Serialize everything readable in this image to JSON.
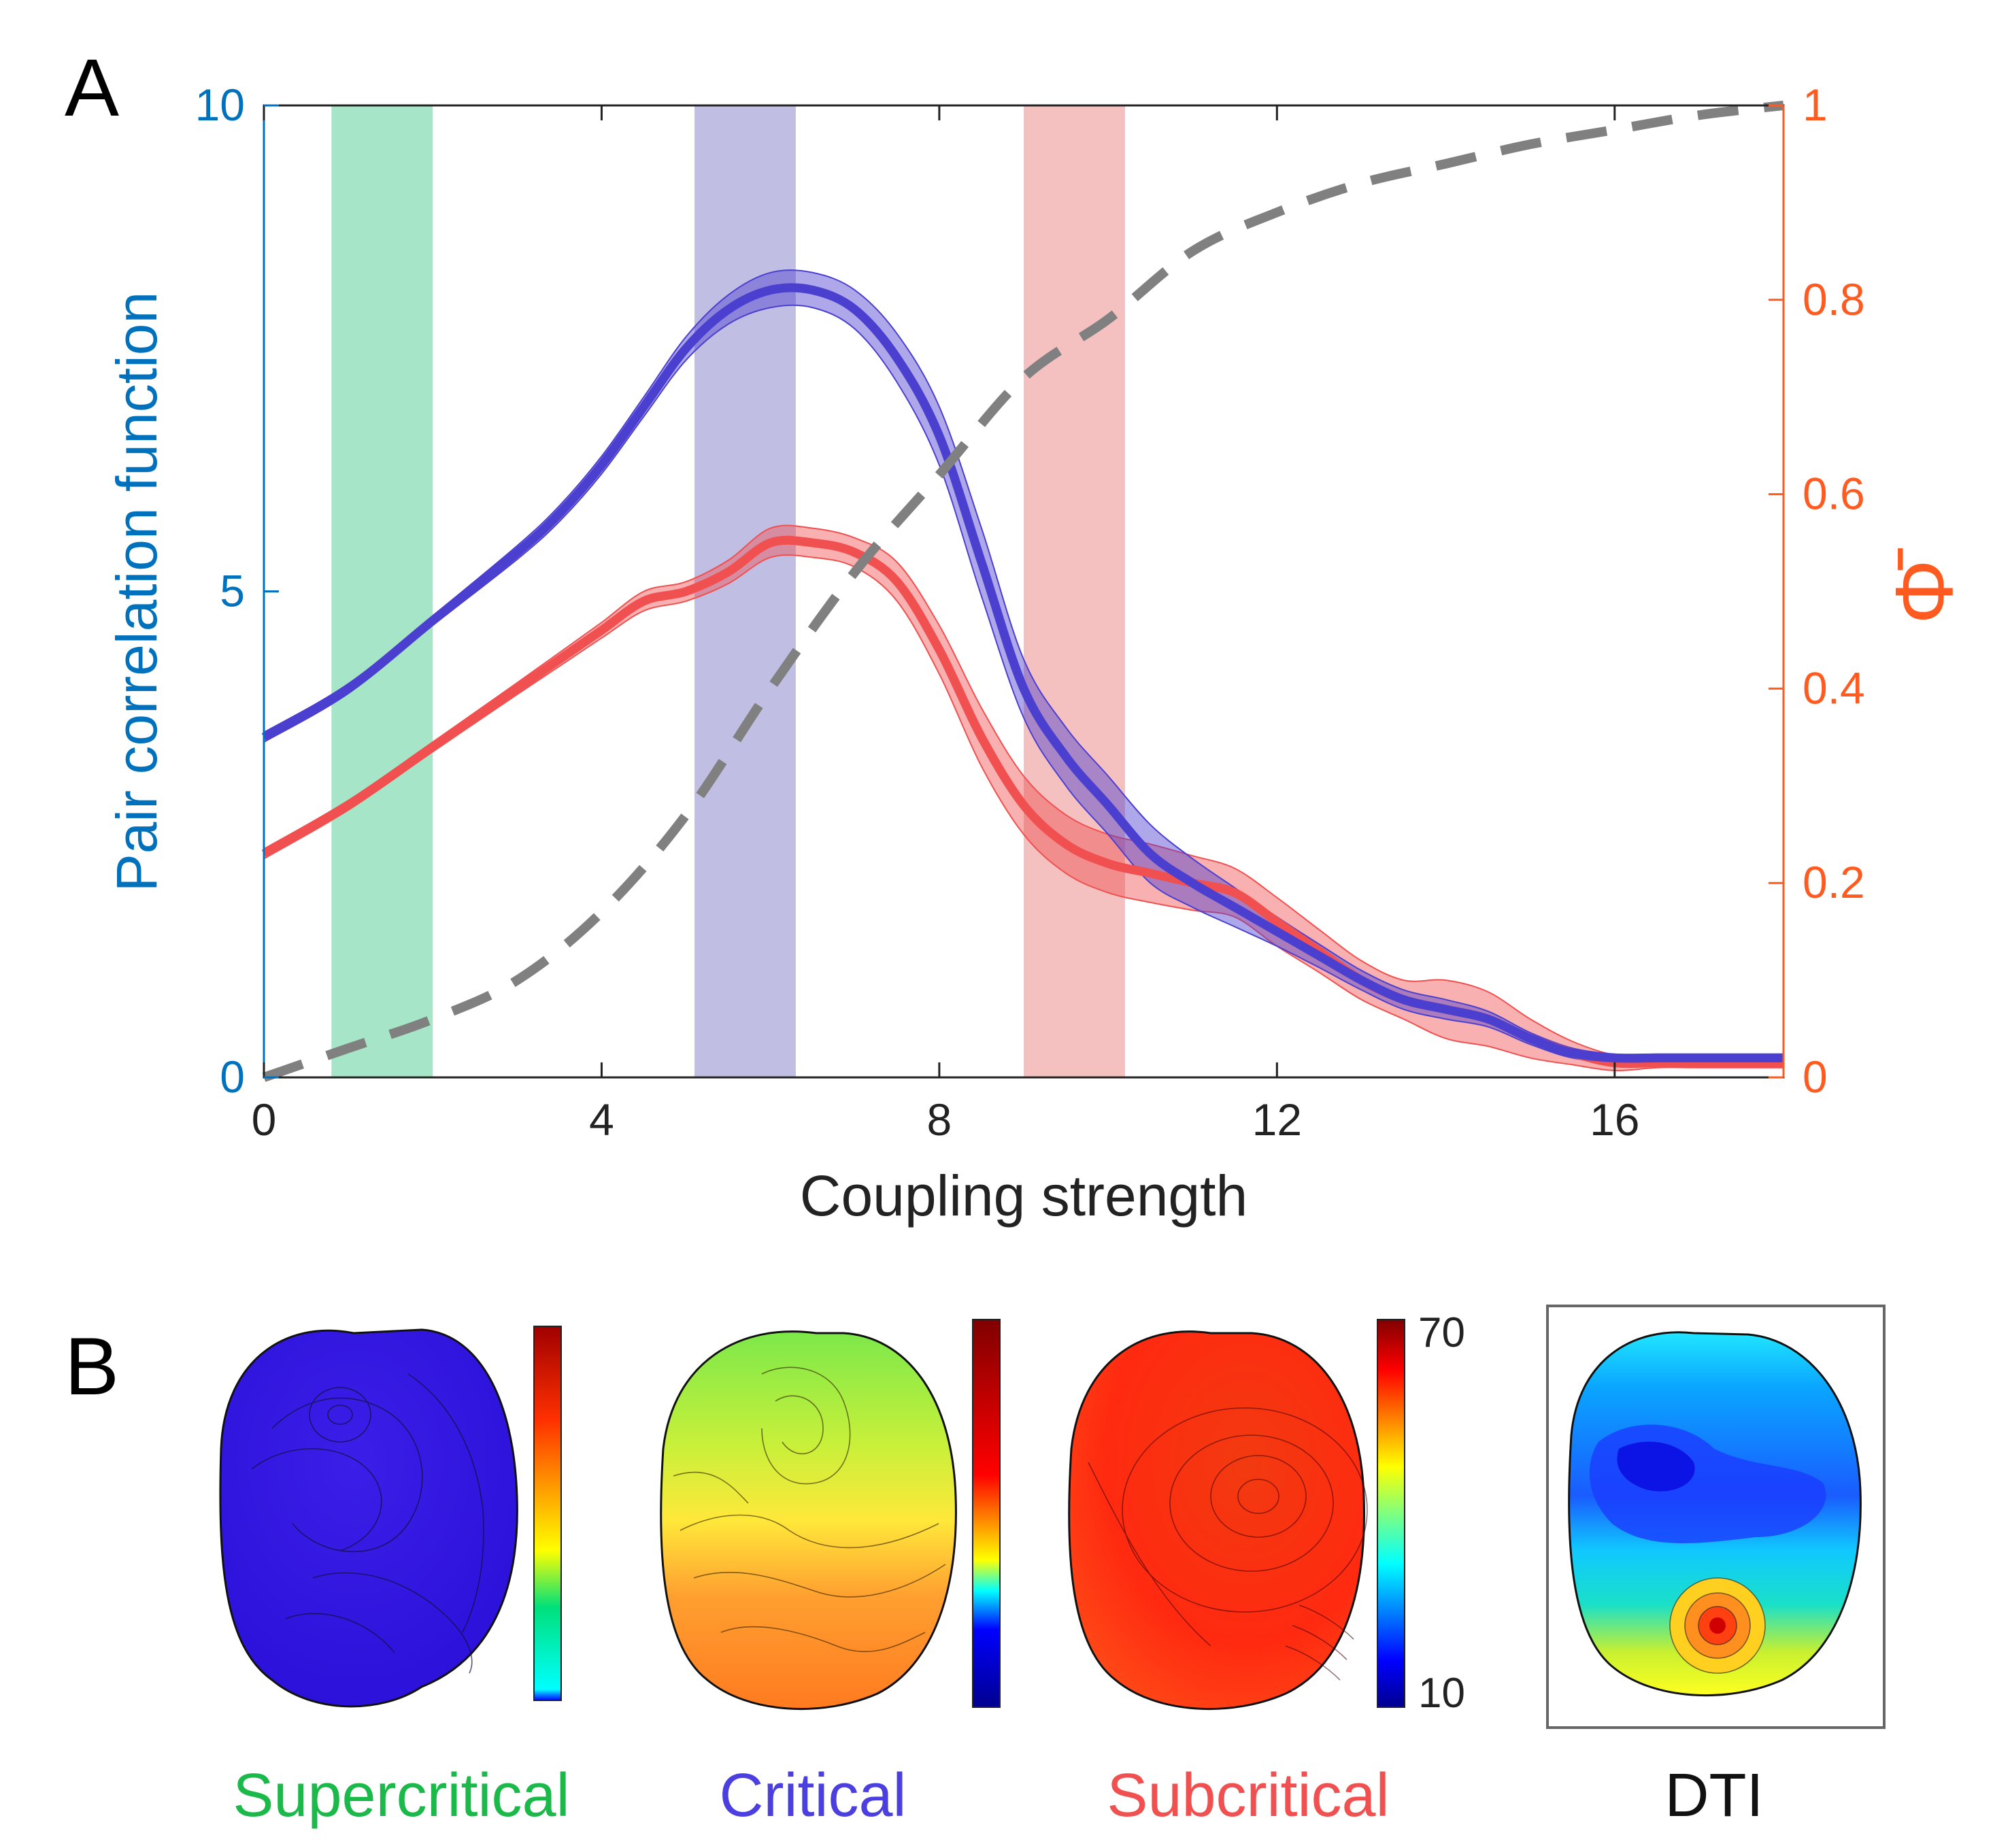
{
  "panel_a_label": "A",
  "panel_b_label": "B",
  "colors": {
    "left_axis": "#0072BD",
    "right_axis": "#FF5A1F",
    "blue_series": "#4B3FD0",
    "red_series": "#F05050",
    "phi_series": "#808080",
    "band_super": "#2EC27E",
    "band_critical": "#6B63BF",
    "band_sub": "#E86A6A",
    "label_super": "#1BB84A",
    "label_critical": "#4B3FE0",
    "label_sub": "#F05050",
    "label_dti": "#111111"
  },
  "chart_data": [
    {
      "type": "line",
      "xlabel": "Coupling strength",
      "ylabel": "Pair correlation function",
      "ylabel_right": "Φ̄",
      "xlim": [
        0,
        18
      ],
      "ylim": [
        0,
        10
      ],
      "ylim_right": [
        0,
        1
      ],
      "xticks": [
        0,
        4,
        8,
        12,
        16
      ],
      "xtick_labels": [
        "0",
        "4",
        "8",
        "12",
        "16"
      ],
      "yticks": [
        0,
        5,
        10
      ],
      "ytick_labels": [
        "0",
        "5",
        "10"
      ],
      "yticks_right": [
        0,
        0.2,
        0.4,
        0.6,
        0.8,
        1
      ],
      "ytick_labels_right": [
        "0",
        "0.2",
        "0.4",
        "0.6",
        "0.8",
        "1"
      ],
      "grid": false,
      "bands": [
        {
          "name": "Supercritical",
          "x": [
            0.8,
            2.0
          ]
        },
        {
          "name": "Critical",
          "x": [
            5.1,
            6.3
          ]
        },
        {
          "name": "Subcritical",
          "x": [
            9.0,
            10.2
          ]
        }
      ],
      "series": [
        {
          "name": "Pair correlation (blue)",
          "axis": "left",
          "x": [
            0,
            1,
            2,
            3,
            3.5,
            4,
            4.5,
            5,
            5.5,
            6,
            6.5,
            7,
            7.5,
            8,
            8.5,
            9,
            9.5,
            10,
            10.5,
            11,
            11.5,
            12,
            12.5,
            13,
            13.5,
            14,
            14.5,
            15,
            15.5,
            16,
            16.5,
            17,
            18
          ],
          "y": [
            3.5,
            4.0,
            4.7,
            5.4,
            5.8,
            6.3,
            6.9,
            7.5,
            7.9,
            8.1,
            8.1,
            7.9,
            7.4,
            6.6,
            5.3,
            4.0,
            3.3,
            2.8,
            2.3,
            2.0,
            1.75,
            1.5,
            1.25,
            1.0,
            0.8,
            0.7,
            0.6,
            0.4,
            0.25,
            0.2,
            0.2,
            0.2,
            0.2
          ],
          "err": [
            0.05,
            0.05,
            0.05,
            0.07,
            0.08,
            0.09,
            0.1,
            0.12,
            0.15,
            0.18,
            0.18,
            0.2,
            0.25,
            0.3,
            0.35,
            0.3,
            0.3,
            0.3,
            0.3,
            0.25,
            0.2,
            0.15,
            0.12,
            0.1,
            0.1,
            0.1,
            0.08,
            0.06,
            0.05,
            0.04,
            0.04,
            0.04,
            0.04
          ]
        },
        {
          "name": "Pair correlation (red)",
          "axis": "left",
          "x": [
            0,
            1,
            2,
            3,
            3.5,
            4,
            4.5,
            5,
            5.5,
            6,
            6.5,
            7,
            7.5,
            8,
            8.5,
            9,
            9.5,
            10,
            10.5,
            11,
            11.5,
            12,
            12.5,
            13,
            13.5,
            14,
            14.5,
            15,
            15.5,
            16,
            16.5,
            17,
            18
          ],
          "y": [
            2.3,
            2.8,
            3.4,
            4.0,
            4.3,
            4.6,
            4.9,
            5.0,
            5.2,
            5.5,
            5.5,
            5.4,
            5.1,
            4.4,
            3.5,
            2.8,
            2.4,
            2.2,
            2.1,
            2.0,
            1.9,
            1.6,
            1.3,
            1.0,
            0.8,
            0.7,
            0.6,
            0.4,
            0.25,
            0.15,
            0.15,
            0.15,
            0.15
          ],
          "err": [
            0.05,
            0.05,
            0.05,
            0.06,
            0.07,
            0.08,
            0.1,
            0.1,
            0.12,
            0.15,
            0.15,
            0.15,
            0.2,
            0.25,
            0.3,
            0.3,
            0.3,
            0.3,
            0.3,
            0.28,
            0.25,
            0.25,
            0.22,
            0.2,
            0.2,
            0.3,
            0.28,
            0.2,
            0.12,
            0.08,
            0.05,
            0.05,
            0.05
          ]
        },
        {
          "name": "Phi",
          "axis": "right",
          "style": "dashed",
          "x": [
            0,
            1,
            2,
            3,
            4,
            5,
            6,
            7,
            8,
            9,
            10,
            11,
            12,
            13,
            14,
            15,
            16,
            17,
            18
          ],
          "y": [
            0.0,
            0.03,
            0.06,
            0.1,
            0.17,
            0.27,
            0.4,
            0.52,
            0.62,
            0.72,
            0.78,
            0.85,
            0.89,
            0.92,
            0.94,
            0.96,
            0.975,
            0.99,
            1.0
          ]
        }
      ]
    },
    {
      "type": "heatmap",
      "panels": [
        {
          "name": "Supercritical",
          "label": "Supercritical"
        },
        {
          "name": "Critical",
          "label": "Critical"
        },
        {
          "name": "Subcritical",
          "label": "Subcritical"
        },
        {
          "name": "DTI",
          "label": "DTI"
        }
      ],
      "colorbar_labels": [
        "70",
        "10"
      ],
      "colorbar_range": [
        10,
        70
      ]
    }
  ]
}
